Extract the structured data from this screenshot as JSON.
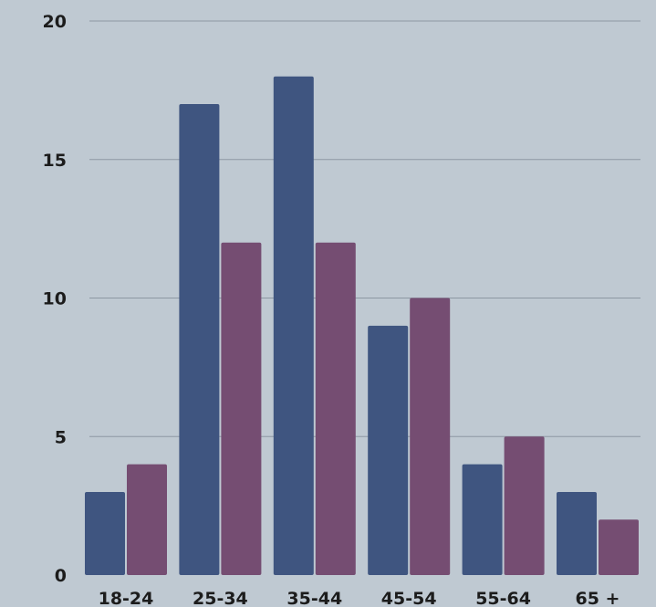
{
  "chart_data": {
    "type": "bar",
    "categories": [
      "18-24",
      "25-34",
      "35-44",
      "45-54",
      "55-64",
      "65 +"
    ],
    "series": [
      {
        "values": [
          3,
          17,
          18,
          9,
          4,
          3
        ]
      },
      {
        "values": [
          4,
          12,
          12,
          10,
          5,
          2
        ]
      }
    ],
    "ylim": [
      0,
      20
    ],
    "yticks": [
      0,
      5,
      10,
      15,
      20
    ],
    "grid": true,
    "title": "",
    "xlabel": "",
    "ylabel": ""
  },
  "colors": {
    "background": "#bfc9d2",
    "series_1": "#3f5580",
    "series_2": "#754d72",
    "grid": "#8d98a3",
    "text": "#1c1c1c"
  }
}
